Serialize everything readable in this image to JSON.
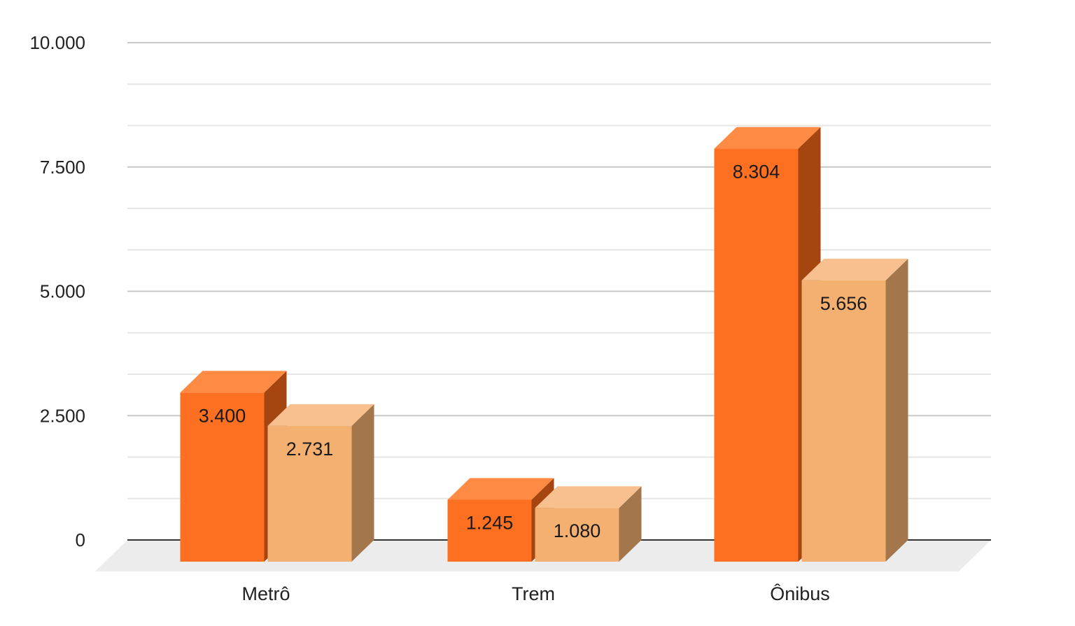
{
  "chart_data": {
    "type": "bar",
    "style": "3d",
    "categories": [
      "Metrô",
      "Trem",
      "Ônibus"
    ],
    "series": [
      {
        "values": [
          3400,
          1245,
          8304
        ],
        "color": "#fd7022",
        "top_color": "#fe8a44",
        "side_color": "#a5450f"
      },
      {
        "values": [
          2731,
          1080,
          5656
        ],
        "color": "#f4b071",
        "top_color": "#f7c08e",
        "side_color": "#a3774b"
      }
    ],
    "data_labels": [
      [
        "3.400",
        "1.245",
        "8.304"
      ],
      [
        "2.731",
        "1.080",
        "5.656"
      ]
    ],
    "y_ticks": [
      0,
      2500,
      5000,
      7500,
      10000
    ],
    "y_tick_labels": [
      "0",
      "2.500",
      "5.000",
      "7.500",
      "10.000"
    ],
    "ylim": [
      0,
      10000
    ],
    "grid": true,
    "minor_grid": true,
    "legend": "none",
    "title": "",
    "xlabel": "",
    "ylabel": ""
  }
}
